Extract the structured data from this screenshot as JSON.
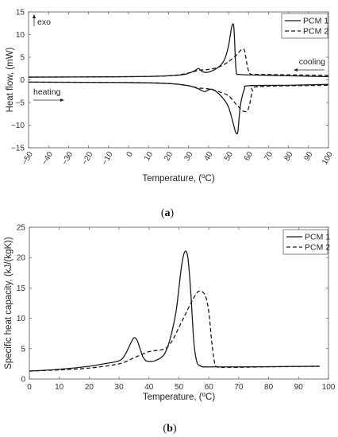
{
  "chart_data": [
    {
      "type": "line",
      "caption": "(a)",
      "xlabel": "Temperature, (°C)",
      "ylabel": "Heat flow, (mW)",
      "xlim": [
        -50,
        100
      ],
      "ylim": [
        -15,
        15
      ],
      "xticks": [
        -50,
        -40,
        -30,
        -20,
        -10,
        0,
        10,
        20,
        30,
        40,
        50,
        60,
        70,
        80,
        90,
        100
      ],
      "yticks": [
        -15,
        -10,
        -5,
        0,
        5,
        10,
        15
      ],
      "annotations": {
        "exo": "exo",
        "cooling": "cooling",
        "heating": "heating"
      },
      "legend_position": "top-right",
      "series": [
        {
          "name": "PCM 1",
          "style": "solid",
          "branch": "cooling",
          "x": [
            -50,
            0,
            20,
            28,
            33,
            35,
            37,
            40,
            45,
            48,
            50,
            51.5,
            52.5,
            53,
            53.5,
            54,
            55,
            60,
            80,
            100
          ],
          "y": [
            0.6,
            0.7,
            0.9,
            1.2,
            2.0,
            2.5,
            1.8,
            1.7,
            2.8,
            4.5,
            7.5,
            11.5,
            12.2,
            9.0,
            4.0,
            1.5,
            1.2,
            1.1,
            0.9,
            0.7
          ]
        },
        {
          "name": "PCM 2",
          "style": "dashed",
          "branch": "cooling",
          "x": [
            -50,
            0,
            20,
            30,
            35,
            40,
            45,
            50,
            54,
            56,
            57,
            58,
            59,
            60,
            61,
            65,
            100
          ],
          "y": [
            0.6,
            0.7,
            0.9,
            1.5,
            2.1,
            2.3,
            2.8,
            4.0,
            5.5,
            6.5,
            6.8,
            6.5,
            4.0,
            2.0,
            1.3,
            1.2,
            1.0
          ]
        },
        {
          "name": "PCM 1",
          "style": "solid",
          "branch": "heating",
          "x": [
            -50,
            0,
            20,
            30,
            35,
            38,
            40,
            42,
            45,
            48,
            50,
            52,
            53.5,
            54.5,
            55,
            56,
            58,
            60,
            80,
            100
          ],
          "y": [
            -0.5,
            -0.6,
            -0.8,
            -1.3,
            -2.0,
            -2.6,
            -2.2,
            -2.1,
            -3.0,
            -4.5,
            -6.0,
            -9.0,
            -11.5,
            -11.8,
            -10.0,
            -5.5,
            -2.0,
            -1.3,
            -1.2,
            -1.0
          ]
        },
        {
          "name": "PCM 2",
          "style": "dashed",
          "branch": "heating",
          "x": [
            -50,
            0,
            20,
            30,
            35,
            40,
            45,
            50,
            54,
            57,
            59,
            60,
            61,
            62,
            65,
            100
          ],
          "y": [
            -0.5,
            -0.6,
            -0.8,
            -1.3,
            -1.8,
            -2.0,
            -2.6,
            -3.5,
            -5.5,
            -6.8,
            -7.0,
            -6.3,
            -4.5,
            -2.5,
            -1.5,
            -1.2
          ]
        }
      ]
    },
    {
      "type": "line",
      "caption": "(b)",
      "xlabel": "Temperature, (°C)",
      "ylabel": "Specific heat capacity, (kJ/(kgK))",
      "xlim": [
        0,
        100
      ],
      "ylim": [
        0,
        25
      ],
      "xticks": [
        0,
        10,
        20,
        30,
        40,
        50,
        60,
        70,
        80,
        90,
        100
      ],
      "yticks": [
        0,
        5,
        10,
        15,
        20,
        25
      ],
      "legend_position": "top-right",
      "series": [
        {
          "name": "PCM 1",
          "style": "solid",
          "x": [
            0,
            10,
            20,
            25,
            30,
            32,
            34,
            35,
            36,
            37,
            38,
            39,
            40,
            42,
            45,
            47,
            49,
            50,
            51,
            52,
            53,
            54,
            55,
            56,
            57,
            58,
            60,
            70,
            97
          ],
          "y": [
            1.3,
            1.6,
            2.1,
            2.5,
            3.0,
            4.0,
            6.0,
            6.8,
            6.4,
            5.0,
            3.6,
            3.0,
            2.9,
            3.0,
            4.0,
            6.5,
            11.0,
            15.0,
            19.0,
            21.0,
            20.0,
            14.0,
            6.0,
            2.8,
            2.2,
            2.0,
            2.0,
            2.0,
            2.1
          ]
        },
        {
          "name": "PCM 2",
          "style": "dashed",
          "x": [
            0,
            10,
            20,
            30,
            35,
            40,
            44,
            46,
            48,
            50,
            52,
            54,
            56,
            57,
            58,
            59,
            60,
            61,
            62,
            63,
            65,
            80,
            97
          ],
          "y": [
            1.3,
            1.5,
            1.8,
            2.5,
            3.5,
            4.5,
            4.8,
            5.2,
            6.5,
            8.5,
            10.5,
            12.5,
            14.2,
            14.5,
            14.3,
            13.5,
            11.0,
            6.0,
            2.5,
            2.0,
            1.9,
            2.0,
            2.1
          ]
        }
      ]
    }
  ],
  "colors": {
    "axis": "#555555",
    "line": "#1a1a1a",
    "text": "#222222"
  }
}
